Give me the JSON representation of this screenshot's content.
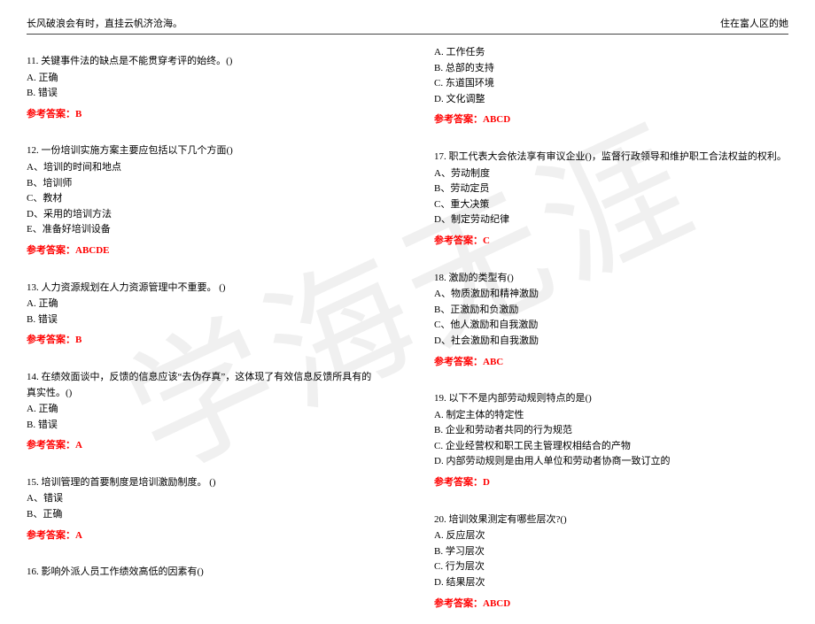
{
  "watermarkText": "学海无涯",
  "header": {
    "left": "长风破浪会有时，直挂云帆济沧海。",
    "right": "住在富人区的她"
  },
  "answerPrefix": "参考答案：",
  "left": {
    "q11": {
      "stem": "11. 关键事件法的缺点是不能贯穿考评的始终。()",
      "opts": [
        "A. 正确",
        "B. 错误"
      ],
      "ans": "B"
    },
    "q12": {
      "stem": "12. 一份培训实施方案主要应包括以下几个方面()",
      "opts": [
        "A、培训的时间和地点",
        "B、培训师",
        "C、教材",
        "D、采用的培训方法",
        "E、准备好培训设备"
      ],
      "ans": "ABCDE"
    },
    "q13": {
      "stem": "13. 人力资源规划在人力资源管理中不重要。 ()",
      "opts": [
        "A. 正确",
        "B. 错误"
      ],
      "ans": "B"
    },
    "q14": {
      "stem": "14. 在绩效面谈中，反馈的信息应该“去伪存真”，这体现了有效信息反馈所具有的真实性。()",
      "opts": [
        "A. 正确",
        "B. 错误"
      ],
      "ans": "A"
    },
    "q15": {
      "stem": "15. 培训管理的首要制度是培训激励制度。 ()",
      "opts": [
        "A、错误",
        "B、正确"
      ],
      "ans": "A"
    },
    "q16": {
      "stem": "16. 影响外派人员工作绩效高低的因素有()"
    }
  },
  "right": {
    "q16opts": {
      "opts": [
        "A. 工作任务",
        "B. 总部的支持",
        "C. 东道国环境",
        "D. 文化调整"
      ],
      "ans": "ABCD"
    },
    "q17": {
      "stem": "17. 职工代表大会依法享有审议企业()，监督行政领导和维护职工合法权益的权利。",
      "opts": [
        "A、劳动制度",
        "B、劳动定员",
        "C、重大决策",
        "D、制定劳动纪律"
      ],
      "ans": "C"
    },
    "q18": {
      "stem": "18. 激励的类型有()",
      "opts": [
        "A、物质激励和精神激励",
        "B、正激励和负激励",
        "C、他人激励和自我激励",
        "D、社会激励和自我激励"
      ],
      "ans": "ABC"
    },
    "q19": {
      "stem": "19. 以下不是内部劳动规则特点的是()",
      "opts": [
        "A. 制定主体的特定性",
        "B. 企业和劳动者共同的行为规范",
        "C. 企业经营权和职工民主管理权相结合的产物",
        "D. 内部劳动规则是由用人单位和劳动者协商一致订立的"
      ],
      "ans": "D"
    },
    "q20": {
      "stem": "20. 培训效果测定有哪些层次?()",
      "opts": [
        "A. 反应层次",
        "B. 学习层次",
        "C. 行为层次",
        "D. 结果层次"
      ],
      "ans": "ABCD"
    }
  }
}
